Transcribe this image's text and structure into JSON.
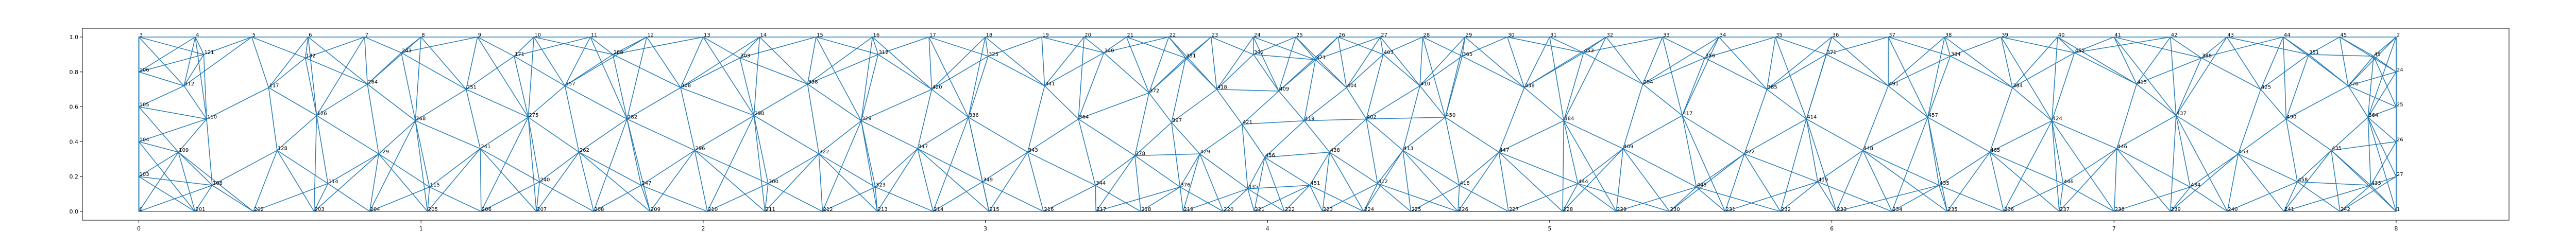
{
  "chart_data": {
    "type": "diagram",
    "xlim": [
      -0.2,
      8.4
    ],
    "ylim": [
      -0.05,
      1.05
    ],
    "x_ticks": [
      0,
      1,
      2,
      3,
      4,
      5,
      6,
      7,
      8
    ],
    "x_tick_labels": [
      "0",
      "1",
      "2",
      "3",
      "4",
      "5",
      "6",
      "7",
      "8"
    ],
    "y_ticks": [
      0.0,
      0.2,
      0.4,
      0.6,
      0.8,
      1.0
    ],
    "y_tick_labels": [
      "0.0",
      "0.2",
      "0.4",
      "0.6",
      "0.8",
      "1.0"
    ],
    "edge_color": "#1f77b4",
    "frame": {
      "x0": 0,
      "x1": 8,
      "y0": 0,
      "y1": 1
    },
    "boundary_nodes": {
      "bottom": {
        "x": [
          0,
          0.199,
          0.406,
          0.621,
          0.818,
          1.023,
          1.213,
          1.409,
          1.612,
          1.812,
          2.015,
          2.219,
          2.423,
          2.617,
          2.815,
          3.013,
          3.206,
          3.392,
          3.551,
          3.701,
          3.843,
          3.953,
          4.06,
          4.195,
          4.341,
          4.508,
          4.675,
          4.854,
          5.046,
          5.236,
          5.425,
          5.622,
          5.818,
          6.016,
          6.213,
          6.409,
          6.609,
          6.806,
          7.001,
          7.2,
          7.402,
          7.602,
          7.801,
          8
        ],
        "labels": [
          "0",
          "201",
          "202",
          "203",
          "204",
          "205",
          "206",
          "207",
          "208",
          "209",
          "210",
          "211",
          "212",
          "213",
          "214",
          "215",
          "216",
          "217",
          "218",
          "219",
          "220",
          "221",
          "222",
          "223",
          "224",
          "225",
          "226",
          "227",
          "228",
          "229",
          "230",
          "231",
          "232",
          "233",
          "234",
          "235",
          "236",
          "237",
          "238",
          "239",
          "240",
          "241",
          "242",
          "1"
        ]
      },
      "top": {
        "x": [
          0,
          0.2,
          0.4,
          0.6,
          0.8,
          1.0,
          1.2,
          1.4,
          1.6,
          1.8,
          2.0,
          2.2,
          2.4,
          2.6,
          2.8,
          3.0,
          3.2,
          3.35,
          3.5,
          3.65,
          3.8,
          3.95,
          4.1,
          4.25,
          4.4,
          4.55,
          4.7,
          4.85,
          5.0,
          5.2,
          5.4,
          5.6,
          5.8,
          6.0,
          6.2,
          6.4,
          6.6,
          6.8,
          7.0,
          7.2,
          7.4,
          7.6,
          7.8,
          8
        ],
        "labels": [
          "3",
          "4",
          "5",
          "6",
          "7",
          "8",
          "9",
          "10",
          "11",
          "12",
          "13",
          "14",
          "15",
          "16",
          "17",
          "18",
          "19",
          "20",
          "21",
          "22",
          "23",
          "24",
          "25",
          "26",
          "27",
          "28",
          "29",
          "30",
          "31",
          "32",
          "33",
          "34",
          "35",
          "36",
          "37",
          "38",
          "39",
          "40",
          "41",
          "42",
          "43",
          "44",
          "45",
          "2"
        ]
      },
      "left": {
        "y": [
          0.2,
          0.4,
          0.6,
          0.8
        ],
        "labels": [
          "103",
          "104",
          "105",
          "106"
        ]
      },
      "right": {
        "y": [
          0.2,
          0.4,
          0.6,
          0.8
        ],
        "labels": [
          "27",
          "26",
          "25",
          "24"
        ]
      }
    },
    "interior_nodes": {
      "x": [
        0.23,
        0.59,
        0.93,
        1.33,
        1.68,
        2.13,
        2.62,
        3.01,
        3.42,
        3.71,
        3.95,
        4.17,
        4.41,
        4.69,
        5.12,
        5.55,
        5.98,
        6.42,
        6.86,
        7.31,
        7.69,
        7.92,
        0.16,
        0.46,
        0.81,
        1.16,
        1.51,
        1.92,
        2.37,
        2.81,
        3.21,
        3.58,
        3.82,
        4.04,
        4.28,
        4.54,
        4.91,
        5.33,
        5.77,
        6.2,
        6.64,
        7.08,
        7.52,
        7.83,
        0.24,
        0.63,
        0.98,
        1.38,
        1.73,
        2.18,
        2.56,
        2.94,
        3.33,
        3.66,
        3.91,
        4.13,
        4.35,
        4.63,
        5.05,
        5.47,
        5.91,
        6.34,
        6.78,
        7.22,
        7.61,
        7.9,
        0.14,
        0.49,
        0.85,
        1.21,
        1.56,
        1.97,
        2.41,
        2.76,
        3.15,
        3.53,
        3.76,
        3.99,
        4.22,
        4.48,
        4.82,
        5.26,
        5.69,
        6.11,
        6.56,
        7.01,
        7.44,
        7.77,
        0.26,
        0.67,
        1.03,
        1.42,
        1.78,
        2.23,
        2.61,
        2.99,
        3.39,
        3.69,
        3.93,
        4.15,
        4.39,
        4.68,
        5.1,
        5.52,
        5.95,
        6.38,
        6.82,
        7.27,
        7.65,
        7.91
      ],
      "y": [
        0.9,
        0.88,
        0.91,
        0.89,
        0.9,
        0.88,
        0.9,
        0.89,
        0.91,
        0.88,
        0.9,
        0.87,
        0.9,
        0.89,
        0.91,
        0.88,
        0.9,
        0.89,
        0.91,
        0.88,
        0.9,
        0.89,
        0.72,
        0.71,
        0.73,
        0.7,
        0.72,
        0.71,
        0.73,
        0.7,
        0.72,
        0.68,
        0.7,
        0.69,
        0.71,
        0.72,
        0.71,
        0.73,
        0.7,
        0.72,
        0.71,
        0.73,
        0.7,
        0.72,
        0.53,
        0.55,
        0.52,
        0.54,
        0.53,
        0.55,
        0.52,
        0.54,
        0.53,
        0.51,
        0.5,
        0.52,
        0.53,
        0.54,
        0.52,
        0.55,
        0.53,
        0.54,
        0.52,
        0.55,
        0.53,
        0.54,
        0.34,
        0.35,
        0.33,
        0.36,
        0.34,
        0.35,
        0.33,
        0.36,
        0.34,
        0.32,
        0.33,
        0.31,
        0.34,
        0.35,
        0.34,
        0.36,
        0.33,
        0.35,
        0.34,
        0.36,
        0.33,
        0.35,
        0.15,
        0.16,
        0.14,
        0.17,
        0.15,
        0.16,
        0.14,
        0.17,
        0.15,
        0.14,
        0.13,
        0.15,
        0.16,
        0.15,
        0.16,
        0.14,
        0.17,
        0.15,
        0.16,
        0.14,
        0.17,
        0.15
      ],
      "labels": [
        "121",
        "132",
        "243",
        "171",
        "288",
        "303",
        "312",
        "325",
        "340",
        "351",
        "392",
        "371",
        "403",
        "365",
        "453",
        "356",
        "371",
        "384",
        "452",
        "388",
        "351",
        "45",
        "112",
        "117",
        "264",
        "251",
        "357",
        "308",
        "338",
        "420",
        "341",
        "372",
        "418",
        "409",
        "404",
        "410",
        "338",
        "294",
        "385",
        "491",
        "384",
        "415",
        "425",
        "370",
        "110",
        "126",
        "268",
        "275",
        "282",
        "298",
        "329",
        "336",
        "364",
        "397",
        "421",
        "419",
        "402",
        "450",
        "384",
        "417",
        "414",
        "457",
        "424",
        "437",
        "490",
        "364",
        "109",
        "128",
        "129",
        "241",
        "262",
        "296",
        "322",
        "347",
        "343",
        "378",
        "429",
        "456",
        "438",
        "413",
        "447",
        "409",
        "422",
        "448",
        "465",
        "446",
        "453",
        "435",
        "108",
        "114",
        "115",
        "240",
        "247",
        "300",
        "323",
        "349",
        "344",
        "376",
        "435",
        "451",
        "412",
        "418",
        "444",
        "445",
        "419",
        "435",
        "446",
        "434",
        "458",
        "433",
        "429",
        "431"
      ]
    }
  }
}
